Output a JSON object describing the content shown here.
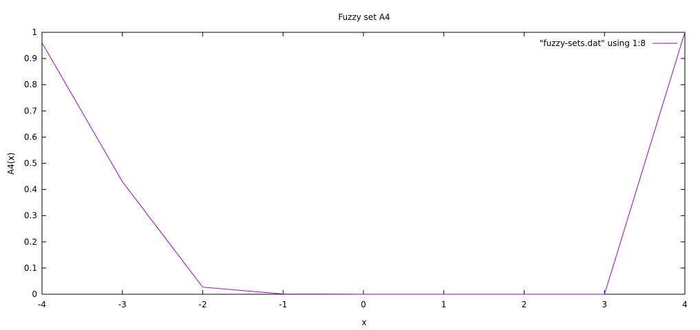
{
  "chart_data": {
    "type": "line",
    "title": "Fuzzy set A4",
    "xlabel": "x",
    "ylabel": "A4(x)",
    "xlim": [
      -4,
      4
    ],
    "ylim": [
      0,
      1
    ],
    "xticks": [
      "-4",
      "-3",
      "-2",
      "-1",
      "0",
      "1",
      "2",
      "3",
      "4"
    ],
    "yticks": [
      "0",
      "0.1",
      "0.2",
      "0.3",
      "0.4",
      "0.5",
      "0.6",
      "0.7",
      "0.8",
      "0.9",
      "1"
    ],
    "grid": false,
    "legend_position": "top-right",
    "series": [
      {
        "name": "\"fuzzy-sets.dat\" using 1:8",
        "color": "#9400d3",
        "x": [
          -4,
          -3,
          -2,
          -1,
          0,
          1,
          2,
          3,
          4
        ],
        "y": [
          0.96,
          0.43,
          0.027,
          0.001,
          0,
          0,
          0,
          0,
          1
        ]
      }
    ]
  }
}
